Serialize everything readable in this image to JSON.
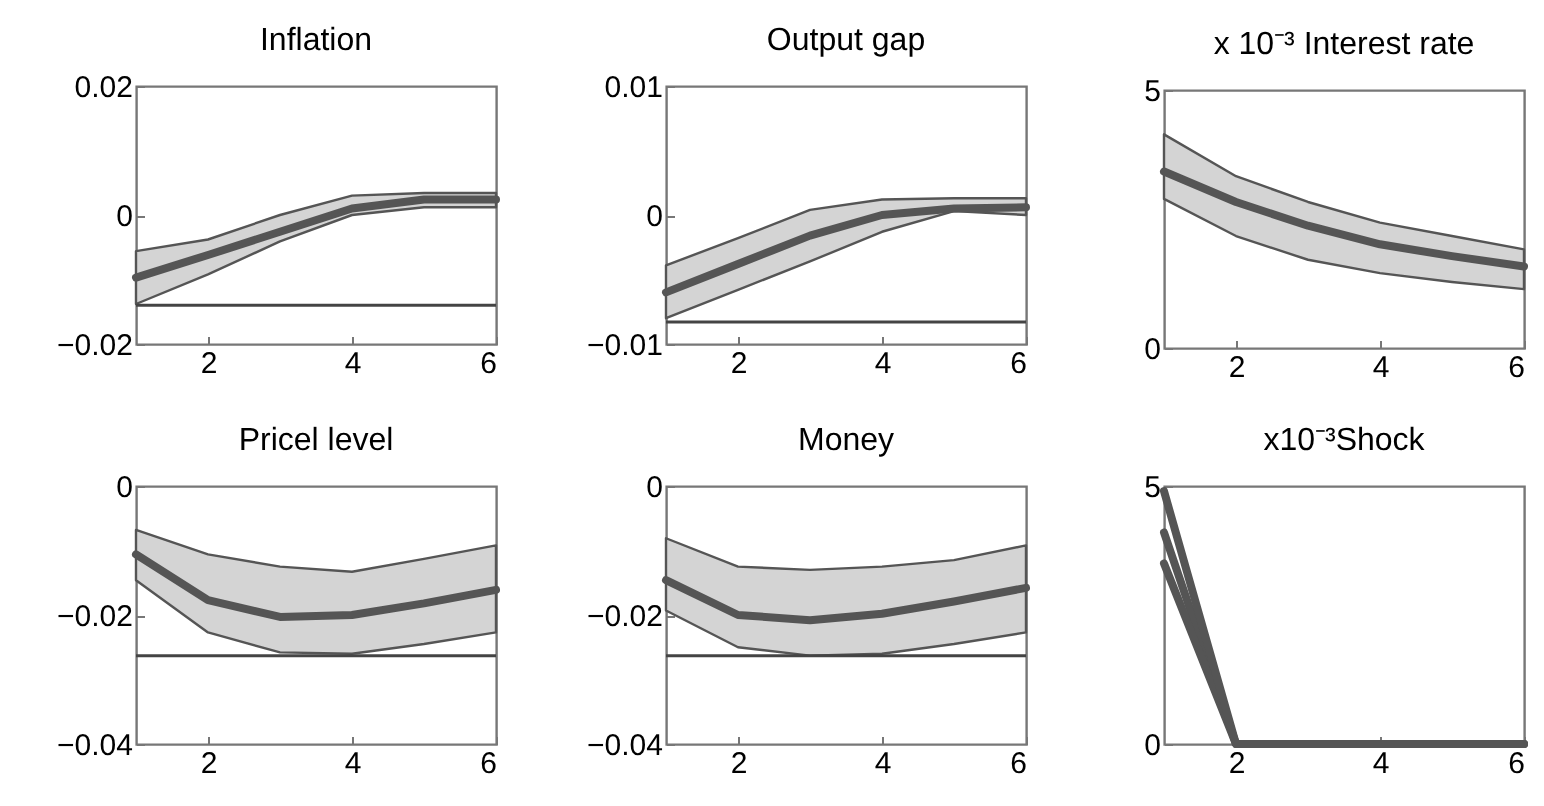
{
  "chart_data": [
    {
      "type": "line",
      "title": "Inflation",
      "x": [
        1,
        2,
        3,
        4,
        5,
        6
      ],
      "xlim": [
        1,
        6
      ],
      "xticks": [
        2,
        4,
        6
      ],
      "ylim": [
        -0.02,
        0.02
      ],
      "yticks": [
        -0.02,
        0,
        0.02
      ],
      "grid": false,
      "series": [
        {
          "color": "#555555",
          "values": [
            -0.0097,
            -0.0062,
            -0.0026,
            0.001,
            0.0024,
            0.0024
          ],
          "lower": [
            -0.0138,
            -0.0092,
            -0.0041,
            0,
            0.0012,
            0.0012
          ],
          "upper": [
            -0.0056,
            -0.0038,
            0,
            0.003,
            0.0034,
            0.0034
          ]
        }
      ],
      "ref_lines": [
        {
          "axis": "y",
          "value": -0.014,
          "color": "#444444"
        }
      ]
    },
    {
      "type": "line",
      "title": "Output gap",
      "x": [
        1,
        2,
        3,
        4,
        5,
        6
      ],
      "xlim": [
        1,
        6
      ],
      "xticks": [
        2,
        4,
        6
      ],
      "ylim": [
        -0.01,
        0.01
      ],
      "yticks": [
        -0.01,
        0,
        0.01
      ],
      "grid": false,
      "series": [
        {
          "color": "#555555",
          "values": [
            -0.006,
            -0.0038,
            -0.0016,
            0,
            0.0005,
            0.0006
          ],
          "lower": [
            -0.008,
            -0.0058,
            -0.0036,
            -0.0013,
            0.0003,
            0
          ],
          "upper": [
            -0.0039,
            -0.0018,
            0.0004,
            0.0012,
            0.0013,
            0.0013
          ]
        }
      ],
      "ref_lines": [
        {
          "axis": "y",
          "value": -0.0083,
          "color": "#444444"
        }
      ]
    },
    {
      "type": "line",
      "title": "x 10⁻³ Interest rate",
      "x": [
        1,
        2,
        3,
        4,
        5,
        6
      ],
      "xlim": [
        1,
        6
      ],
      "xticks": [
        2,
        4,
        6
      ],
      "ylim": [
        0,
        5
      ],
      "yticks": [
        0,
        5
      ],
      "grid": false,
      "series": [
        {
          "color": "#555555",
          "values": [
            3.42,
            2.83,
            2.37,
            2.01,
            1.78,
            1.58
          ],
          "lower": [
            2.89,
            2.17,
            1.71,
            1.45,
            1.28,
            1.14
          ],
          "upper": [
            4.14,
            3.33,
            2.83,
            2.43,
            2.17,
            1.91
          ]
        }
      ]
    },
    {
      "type": "line",
      "title": "Pricel level",
      "x": [
        1,
        2,
        3,
        4,
        5,
        6
      ],
      "xlim": [
        1,
        6
      ],
      "xticks": [
        2,
        4,
        6
      ],
      "ylim": [
        -0.04,
        0
      ],
      "yticks": [
        -0.04,
        -0.02,
        0
      ],
      "grid": false,
      "series": [
        {
          "color": "#555555",
          "values": [
            -0.0106,
            -0.0177,
            -0.0203,
            -0.02,
            -0.0182,
            -0.0161
          ],
          "lower": [
            -0.0146,
            -0.0227,
            -0.0258,
            -0.026,
            -0.0245,
            -0.0227
          ],
          "upper": [
            -0.0068,
            -0.0106,
            -0.0125,
            -0.0133,
            -0.0113,
            -0.0092
          ]
        }
      ],
      "ref_lines": [
        {
          "axis": "y",
          "value": -0.0263,
          "color": "#444444"
        }
      ]
    },
    {
      "type": "line",
      "title": "Money",
      "x": [
        1,
        2,
        3,
        4,
        5,
        6
      ],
      "xlim": [
        1,
        6
      ],
      "xticks": [
        2,
        4,
        6
      ],
      "ylim": [
        -0.04,
        0
      ],
      "yticks": [
        -0.04,
        -0.02,
        0
      ],
      "grid": false,
      "series": [
        {
          "color": "#555555",
          "values": [
            -0.0146,
            -0.02,
            -0.0208,
            -0.0198,
            -0.0179,
            -0.0158
          ],
          "lower": [
            -0.0193,
            -0.025,
            -0.0263,
            -0.026,
            -0.0245,
            -0.0227
          ],
          "upper": [
            -0.0081,
            -0.0125,
            -0.013,
            -0.0125,
            -0.0115,
            -0.0092
          ]
        }
      ],
      "ref_lines": [
        {
          "axis": "y",
          "value": -0.0263,
          "color": "#444444"
        }
      ]
    },
    {
      "type": "line",
      "title": "x10⁻³Shock",
      "x": [
        1,
        2,
        3,
        4,
        5,
        6
      ],
      "xlim": [
        1,
        6
      ],
      "xticks": [
        2,
        4,
        6
      ],
      "ylim": [
        0,
        5
      ],
      "yticks": [
        0,
        5
      ],
      "grid": false,
      "series": [
        {
          "color": "#555555",
          "values": [
            4.1,
            0,
            0,
            0,
            0,
            0
          ]
        },
        {
          "color": "#555555",
          "values": [
            3.5,
            0,
            0,
            0,
            0,
            0
          ]
        },
        {
          "color": "#555555",
          "values": [
            4.9,
            0,
            0,
            0,
            0,
            0
          ]
        }
      ]
    }
  ]
}
